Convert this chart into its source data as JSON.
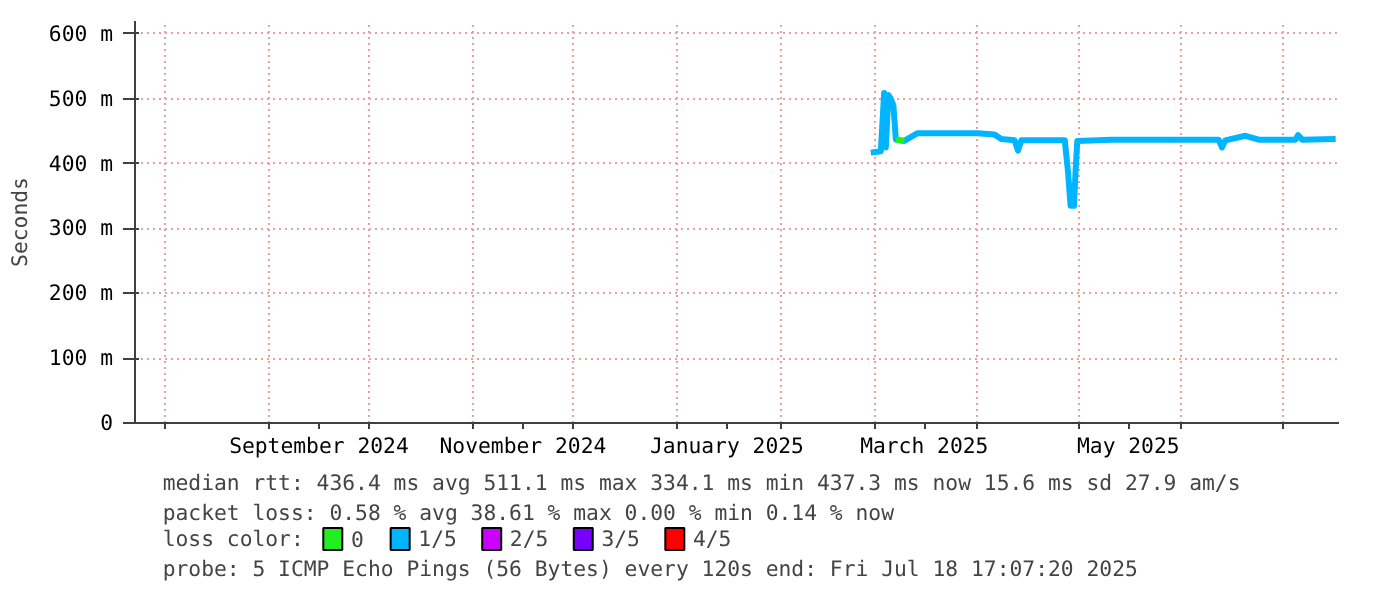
{
  "chart_data": {
    "type": "line",
    "ylabel": "Seconds",
    "legend_title": "loss color:",
    "legend": "bottom",
    "grid": true,
    "xlim": [
      "2024-07-23",
      "2025-07-18"
    ],
    "xticks": [
      {
        "value": "2024-08-01",
        "label": null
      },
      {
        "value": "2024-09-01",
        "label": null
      },
      {
        "value": "2024-09-16",
        "label": "September 2024"
      },
      {
        "value": "2024-10-01",
        "label": null
      },
      {
        "value": "2024-11-01",
        "label": null
      },
      {
        "value": "2024-11-16",
        "label": "November 2024"
      },
      {
        "value": "2024-12-01",
        "label": null
      },
      {
        "value": "2025-01-01",
        "label": null
      },
      {
        "value": "2025-01-16",
        "label": "January 2025"
      },
      {
        "value": "2025-02-01",
        "label": null
      },
      {
        "value": "2025-03-01",
        "label": null
      },
      {
        "value": "2025-03-16",
        "label": "March 2025"
      },
      {
        "value": "2025-04-01",
        "label": null
      },
      {
        "value": "2025-05-01",
        "label": null
      },
      {
        "value": "2025-05-16",
        "label": "May 2025"
      },
      {
        "value": "2025-06-01",
        "label": null
      },
      {
        "value": "2025-07-01",
        "label": null
      }
    ],
    "ylim": [
      0,
      620
    ],
    "yticks": [
      {
        "value": 0,
        "label": "0"
      },
      {
        "value": 100,
        "label": "100 m"
      },
      {
        "value": 200,
        "label": "200 m"
      },
      {
        "value": 300,
        "label": "300 m"
      },
      {
        "value": 400,
        "label": "400 m"
      },
      {
        "value": 500,
        "label": "500 m"
      },
      {
        "value": 600,
        "label": "600 m"
      }
    ],
    "x": [
      "2025-02-28",
      "2025-03-03",
      "2025-03-04",
      "2025-03-04T12:00",
      "2025-03-05T06:00",
      "2025-03-06",
      "2025-03-06T18:00",
      "2025-03-07T12:00",
      "2025-03-10",
      "2025-03-14",
      "2025-04-01",
      "2025-04-06",
      "2025-04-08",
      "2025-04-12",
      "2025-04-13",
      "2025-04-14",
      "2025-04-27",
      "2025-04-28",
      "2025-04-28T18:00",
      "2025-04-29T18:00",
      "2025-04-30T06:00",
      "2025-04-30T18:00",
      "2025-05-11",
      "2025-06-12",
      "2025-06-13",
      "2025-06-14",
      "2025-06-20",
      "2025-06-24",
      "2025-07-05",
      "2025-07-05T18:00",
      "2025-07-07",
      "2025-07-17"
    ],
    "series": [
      {
        "name": "0",
        "color": "#22ee22",
        "x": [
          "2025-03-07T12:00",
          "2025-03-10"
        ],
        "values": [
          437,
          435
        ]
      },
      {
        "name": "1/5",
        "color": "#00b4ff",
        "values": [
          417,
          419,
          509,
          425,
          506,
          500,
          490,
          437,
          435,
          447,
          447,
          445,
          438,
          436,
          420,
          436,
          436,
          386,
          335,
          335,
          390,
          435,
          437,
          437,
          425,
          436,
          443,
          437,
          437,
          444,
          437,
          438
        ]
      },
      {
        "name": "2/5",
        "color": "#cc00ff",
        "values": [
          null,
          null,
          null,
          null,
          null,
          null,
          null,
          null,
          null,
          null,
          null,
          null,
          null,
          null,
          null,
          null,
          null,
          null,
          null,
          null,
          null,
          null,
          null,
          null,
          null,
          null,
          null,
          null,
          null,
          null,
          null,
          null
        ]
      },
      {
        "name": "3/5",
        "color": "#7700ff",
        "values": [
          null,
          null,
          null,
          null,
          null,
          null,
          null,
          null,
          null,
          null,
          null,
          null,
          null,
          null,
          null,
          null,
          null,
          null,
          null,
          null,
          null,
          null,
          null,
          null,
          null,
          null,
          null,
          null,
          null,
          null,
          null,
          null
        ]
      },
      {
        "name": "4/5",
        "color": "#ff0000",
        "values": [
          null,
          null,
          null,
          null,
          null,
          null,
          null,
          null,
          null,
          null,
          null,
          null,
          null,
          null,
          null,
          null,
          null,
          null,
          null,
          null,
          null,
          null,
          null,
          null,
          null,
          null,
          null,
          null,
          null,
          null,
          null,
          null
        ]
      }
    ],
    "annotations": [
      "median rtt:  436.4 ms avg  511.1 ms max  334.1 ms min  437.3 ms now  15.6 ms sd  27.9   am/s",
      "packet loss: 0.58 % avg  38.61 % max  0.00 % min  0.14 % now",
      "probe:       5 ICMP Echo Pings (56 Bytes) every 120s                   end: Fri Jul 18 17:07:20 2025"
    ]
  }
}
